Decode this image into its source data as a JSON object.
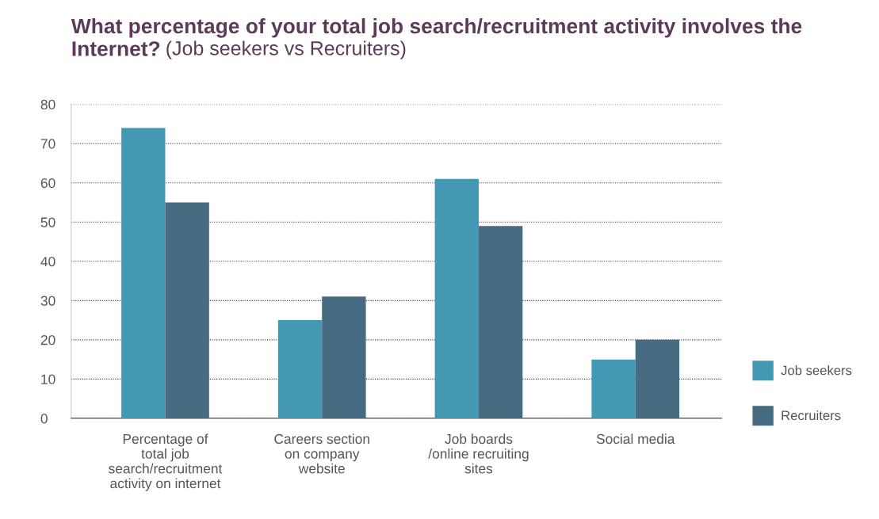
{
  "chart_data": {
    "type": "bar",
    "title": "What percentage of your total job search/recruitment activity involves the Internet?",
    "subtitle": "(Job seekers vs Recruiters)",
    "categories": [
      "Percentage of\ntotal job\nsearch/recruitment\nactivity on internet",
      "Careers section\non company\nwebsite",
      "Job boards\n/online recruiting\nsites",
      "Social media"
    ],
    "series": [
      {
        "name": "Job seekers",
        "color": "#4398b4",
        "values": [
          74,
          25,
          61,
          15
        ]
      },
      {
        "name": "Recruiters",
        "color": "#476c82",
        "values": [
          55,
          31,
          49,
          20
        ]
      }
    ],
    "ylim": [
      0,
      80
    ],
    "yticks": [
      0,
      10,
      20,
      30,
      40,
      50,
      60,
      70,
      80
    ],
    "grid": "y",
    "legend": "right"
  }
}
